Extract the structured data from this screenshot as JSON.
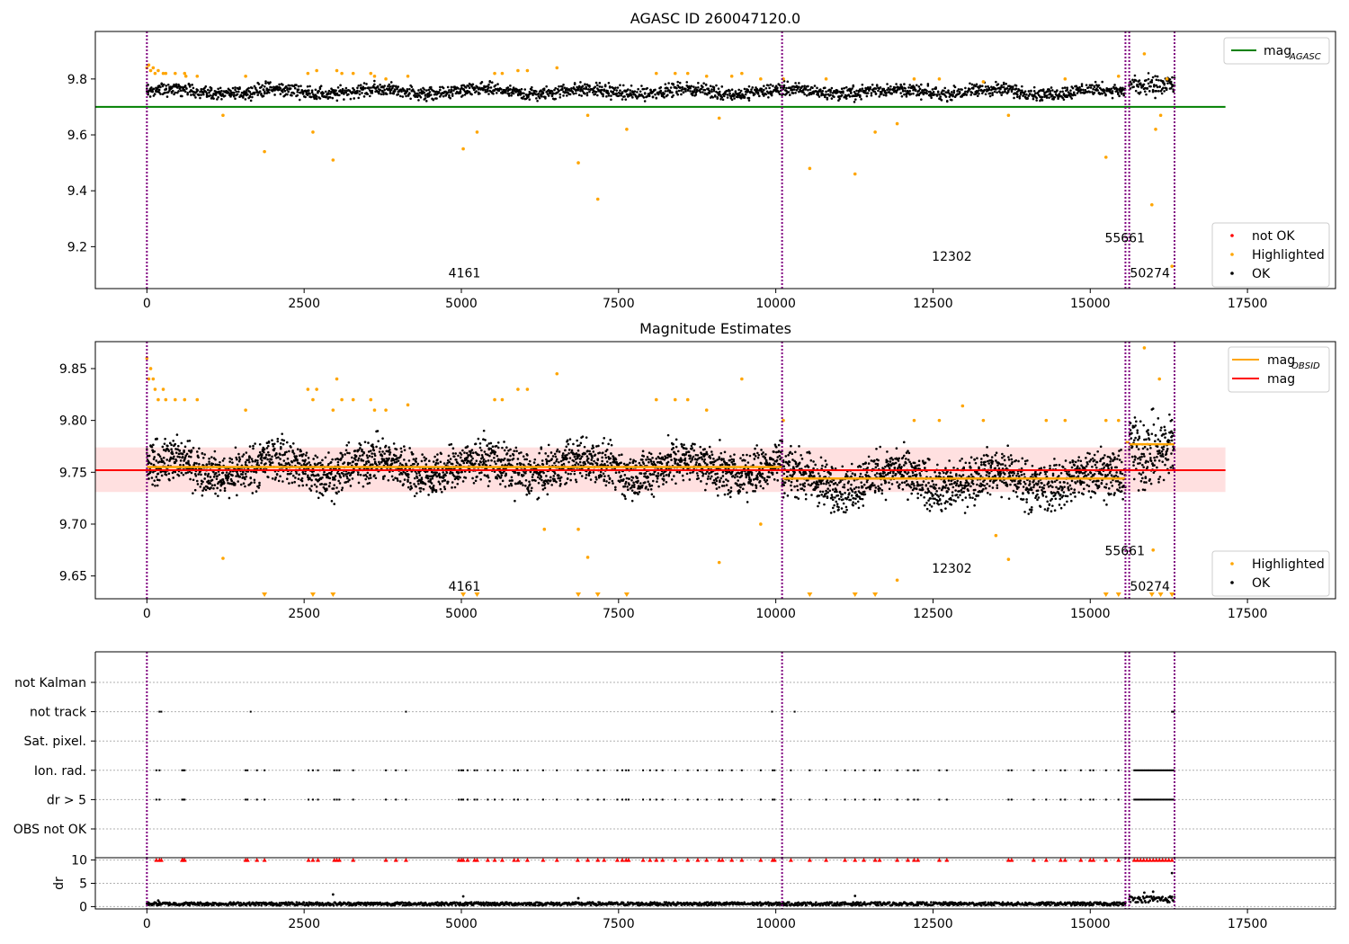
{
  "chart_data": [
    {
      "id": "top",
      "type": "scatter",
      "title": "AGASC ID 260047120.0",
      "xlabel": "",
      "ylabel": "",
      "xlim": [
        -820,
        18900
      ],
      "ylim": [
        9.05,
        9.97
      ],
      "xticks": [
        0,
        2500,
        5000,
        7500,
        10000,
        12500,
        15000,
        17500
      ],
      "xtick_labels": [
        "0",
        "2500",
        "5000",
        "7500",
        "10000",
        "12500",
        "15000",
        "17500"
      ],
      "yticks": [
        9.2,
        9.4,
        9.6,
        9.8
      ],
      "ytick_labels": [
        "9.2",
        "9.4",
        "9.6",
        "9.8"
      ],
      "vlines": [
        0,
        10100,
        15560,
        15620,
        16340
      ],
      "line_series": [
        {
          "name": "mag$_{AGASC}$",
          "legend_main": "mag",
          "legend_sub": "AGASC",
          "color": "#008000",
          "x": [
            -820,
            17150
          ],
          "y": [
            9.7,
            9.7
          ]
        }
      ],
      "ok_segments": [
        {
          "x0": 0,
          "x1": 15560,
          "center": 9.755,
          "spread": 0.025
        },
        {
          "x0": 15620,
          "x1": 16340,
          "center": 9.785,
          "spread": 0.04
        }
      ],
      "ok_color": "#000000",
      "highlighted_color": "#ffa500",
      "highlighted": {
        "x": [
          0,
          30,
          60,
          100,
          130,
          180,
          260,
          300,
          450,
          600,
          620,
          800,
          1210,
          1570,
          1870,
          2560,
          2640,
          2700,
          2960,
          3020,
          3100,
          3280,
          3560,
          3620,
          3800,
          4150,
          5030,
          5250,
          5530,
          5650,
          5900,
          6050,
          6520,
          6860,
          7010,
          7170,
          7630,
          8100,
          8400,
          8600,
          8900,
          9100,
          9300,
          9460,
          9760,
          10120,
          10540,
          10800,
          11260,
          11580,
          11930,
          12200,
          12600,
          13300,
          13700,
          14600,
          15250,
          15450,
          15860,
          15980,
          16040,
          16120,
          16220,
          16300
        ],
        "y": [
          9.84,
          9.85,
          9.83,
          9.84,
          9.82,
          9.83,
          9.82,
          9.82,
          9.82,
          9.82,
          9.81,
          9.81,
          9.67,
          9.81,
          9.54,
          9.82,
          9.61,
          9.83,
          9.51,
          9.83,
          9.82,
          9.82,
          9.82,
          9.81,
          9.8,
          9.81,
          9.55,
          9.61,
          9.82,
          9.82,
          9.83,
          9.83,
          9.84,
          9.5,
          9.67,
          9.37,
          9.62,
          9.82,
          9.82,
          9.82,
          9.81,
          9.66,
          9.81,
          9.82,
          9.8,
          9.8,
          9.48,
          9.8,
          9.46,
          9.61,
          9.64,
          9.8,
          9.8,
          9.79,
          9.67,
          9.8,
          9.52,
          9.81,
          9.89,
          9.35,
          9.62,
          9.67,
          9.8,
          9.13
        ]
      },
      "annotations": [
        {
          "text": "4161",
          "x": 5050,
          "y": 9.09
        },
        {
          "text": "12302",
          "x": 12800,
          "y": 9.15
        },
        {
          "text": "55661",
          "x": 15550,
          "y": 9.215
        },
        {
          "text": "50274",
          "x": 15950,
          "y": 9.09
        }
      ],
      "legends": [
        {
          "loc": "upper-right",
          "entries": [
            {
              "label": "mag",
              "sub": "AGASC",
              "kind": "line",
              "color": "#008000"
            }
          ]
        },
        {
          "loc": "lower-right",
          "entries": [
            {
              "label": "not OK",
              "kind": "dot",
              "color": "#ff0000"
            },
            {
              "label": "Highlighted",
              "kind": "dot",
              "color": "#ffa500"
            },
            {
              "label": "OK",
              "kind": "dot",
              "color": "#000000"
            }
          ]
        }
      ]
    },
    {
      "id": "middle",
      "type": "scatter",
      "title": "Magnitude Estimates",
      "xlabel": "",
      "ylabel": "",
      "xlim": [
        -820,
        18900
      ],
      "ylim": [
        9.628,
        9.876
      ],
      "xticks": [
        0,
        2500,
        5000,
        7500,
        10000,
        12500,
        15000,
        17500
      ],
      "xtick_labels": [
        "0",
        "2500",
        "5000",
        "7500",
        "10000",
        "12500",
        "15000",
        "17500"
      ],
      "yticks": [
        9.65,
        9.7,
        9.75,
        9.8,
        9.85
      ],
      "ytick_labels": [
        "9.65",
        "9.70",
        "9.75",
        "9.80",
        "9.85"
      ],
      "vlines": [
        0,
        10100,
        15560,
        15620,
        16340
      ],
      "band": {
        "x0": -820,
        "x1": 17150,
        "y0": 9.731,
        "y1": 9.774,
        "color": "rgba(255,0,0,0.12)"
      },
      "mag_line": {
        "x": [
          -820,
          17150
        ],
        "y": [
          9.752,
          9.752
        ],
        "color": "#ff0000"
      },
      "obsid_segments": [
        {
          "x0": 0,
          "x1": 10100,
          "y": 9.755
        },
        {
          "x0": 10100,
          "x1": 15560,
          "y": 9.744
        },
        {
          "x0": 15560,
          "x1": 15620,
          "y": 9.779
        },
        {
          "x0": 15620,
          "x1": 16340,
          "y": 9.777
        }
      ],
      "ok_segments": [
        {
          "x0": 0,
          "x1": 10100,
          "center": 9.755,
          "spread": 0.022
        },
        {
          "x0": 10100,
          "x1": 15560,
          "center": 9.743,
          "spread": 0.024
        },
        {
          "x0": 15620,
          "x1": 16340,
          "center": 9.78,
          "spread": 0.035
        }
      ],
      "ok_color": "#000000",
      "highlighted_color": "#ffa500",
      "highlighted": {
        "x": [
          0,
          30,
          60,
          100,
          130,
          180,
          260,
          300,
          450,
          600,
          800,
          1210,
          1570,
          2560,
          2640,
          2700,
          2960,
          3020,
          3100,
          3280,
          3560,
          3620,
          3800,
          4150,
          5530,
          5650,
          5900,
          6050,
          6320,
          6520,
          6860,
          7010,
          8100,
          8400,
          8600,
          8900,
          9100,
          9460,
          9760,
          10120,
          11930,
          12200,
          12600,
          12970,
          13300,
          13500,
          13700,
          14300,
          14600,
          15250,
          15450,
          15860,
          16000,
          16100
        ],
        "y": [
          9.86,
          9.84,
          9.85,
          9.84,
          9.83,
          9.82,
          9.83,
          9.82,
          9.82,
          9.82,
          9.82,
          9.667,
          9.81,
          9.83,
          9.82,
          9.83,
          9.81,
          9.84,
          9.82,
          9.82,
          9.82,
          9.81,
          9.81,
          9.815,
          9.82,
          9.82,
          9.83,
          9.83,
          9.695,
          9.845,
          9.695,
          9.668,
          9.82,
          9.82,
          9.82,
          9.81,
          9.663,
          9.84,
          9.7,
          9.8,
          9.646,
          9.8,
          9.8,
          9.814,
          9.8,
          9.689,
          9.666,
          9.8,
          9.8,
          9.8,
          9.8,
          9.87,
          9.675,
          9.84
        ]
      },
      "out_of_range_x": [
        1870,
        2640,
        2960,
        5030,
        5250,
        6860,
        7170,
        7630,
        10540,
        11260,
        11580,
        15250,
        15450,
        15980,
        16120,
        16300
      ],
      "annotations": [
        {
          "text": "4161",
          "x": 5050,
          "y": 9.636
        },
        {
          "text": "12302",
          "x": 12800,
          "y": 9.653
        },
        {
          "text": "55661",
          "x": 15550,
          "y": 9.67
        },
        {
          "text": "50274",
          "x": 15950,
          "y": 9.636
        }
      ],
      "legends": [
        {
          "loc": "upper-right",
          "entries": [
            {
              "label": "mag",
              "sub": "OBSID",
              "kind": "line",
              "color": "#ffa500"
            },
            {
              "label": "mag",
              "kind": "line",
              "color": "#ff0000"
            }
          ]
        },
        {
          "loc": "lower-right",
          "entries": [
            {
              "label": "Highlighted",
              "kind": "dot",
              "color": "#ffa500"
            },
            {
              "label": "OK",
              "kind": "dot",
              "color": "#000000"
            }
          ]
        }
      ]
    },
    {
      "id": "flags",
      "type": "scatter",
      "xlabel": "",
      "ylabel": "",
      "xlim": [
        -820,
        18900
      ],
      "categories": [
        "not Kalman",
        "not track",
        "Sat. pixel.",
        "Ion. rad.",
        "dr > 5",
        "OBS not OK"
      ],
      "vlines": [
        0,
        10100,
        15560,
        15620,
        16340
      ],
      "flag_points": {
        "not track": [
          200,
          230,
          1650,
          4120,
          9940,
          10300,
          16300
        ],
        "Ion. rad.": [
          150,
          200,
          560,
          580,
          600,
          1570,
          1600,
          1750,
          1870,
          2570,
          2640,
          2720,
          2980,
          3020,
          3060,
          3280,
          3800,
          3960,
          4120,
          4960,
          5000,
          5030,
          5100,
          5210,
          5250,
          5420,
          5530,
          5650,
          5840,
          5900,
          6050,
          6300,
          6520,
          6850,
          7010,
          7170,
          7270,
          7480,
          7560,
          7620,
          7660,
          7890,
          8000,
          8100,
          8200,
          8400,
          8600,
          8760,
          8900,
          9100,
          9150,
          9300,
          9460,
          9760,
          9950,
          9980,
          10240,
          10540,
          10800,
          11100,
          11260,
          11400,
          11580,
          11650,
          11930,
          12100,
          12200,
          12260,
          12600,
          12720,
          13700,
          13750,
          14100,
          14300,
          14530,
          14600,
          14850,
          15000,
          15050,
          15250,
          15450,
          15700,
          15750,
          15800,
          15850,
          15900,
          15950,
          16000,
          16050,
          16100,
          16150,
          16200,
          16250,
          16300
        ],
        "dr > 5": [
          150,
          200,
          560,
          580,
          600,
          1570,
          1600,
          1750,
          1870,
          2570,
          2640,
          2720,
          2980,
          3020,
          3060,
          3280,
          3800,
          3960,
          4120,
          4960,
          5000,
          5030,
          5100,
          5210,
          5250,
          5420,
          5530,
          5650,
          5840,
          5900,
          6050,
          6300,
          6520,
          6850,
          7010,
          7170,
          7270,
          7480,
          7560,
          7620,
          7660,
          7890,
          8000,
          8100,
          8200,
          8400,
          8600,
          8760,
          8900,
          9100,
          9150,
          9300,
          9460,
          9760,
          9950,
          9980,
          10240,
          10540,
          10800,
          11100,
          11260,
          11400,
          11580,
          11650,
          11930,
          12100,
          12200,
          12260,
          12600,
          12720,
          13700,
          13750,
          14100,
          14300,
          14530,
          14600,
          14850,
          15000,
          15050,
          15250,
          15450,
          15700,
          15750,
          15800,
          15850,
          15900,
          15950,
          16000,
          16050,
          16100,
          16150,
          16200,
          16250,
          16300
        ]
      }
    },
    {
      "id": "dr",
      "type": "scatter",
      "xlabel": "",
      "ylabel": "dr",
      "xlim": [
        -820,
        18900
      ],
      "ylim": [
        -0.5,
        10.5
      ],
      "xticks": [
        0,
        2500,
        5000,
        7500,
        10000,
        12500,
        15000,
        17500
      ],
      "xtick_labels": [
        "0",
        "2500",
        "5000",
        "7500",
        "10000",
        "12500",
        "15000",
        "17500"
      ],
      "yticks": [
        0,
        5,
        10
      ],
      "ytick_labels": [
        "0",
        "5",
        "10"
      ],
      "vlines": [
        0,
        10100,
        15560,
        15620,
        16340
      ],
      "clipped_color": "#ff0000",
      "clipped_x": [
        150,
        200,
        230,
        560,
        580,
        600,
        1570,
        1600,
        1750,
        1870,
        2570,
        2640,
        2720,
        2980,
        3020,
        3060,
        3280,
        3800,
        3960,
        4120,
        4960,
        5000,
        5030,
        5100,
        5210,
        5250,
        5420,
        5530,
        5650,
        5840,
        5900,
        6050,
        6300,
        6520,
        6850,
        7010,
        7170,
        7270,
        7480,
        7560,
        7620,
        7660,
        7890,
        8000,
        8100,
        8200,
        8400,
        8600,
        8760,
        8900,
        9100,
        9150,
        9300,
        9460,
        9760,
        9950,
        9980,
        10240,
        10540,
        10800,
        11100,
        11260,
        11400,
        11580,
        11650,
        11930,
        12100,
        12200,
        12260,
        12600,
        12720,
        13700,
        13750,
        14100,
        14300,
        14530,
        14600,
        14850,
        15000,
        15050,
        15250,
        15450,
        15700,
        15750,
        15800,
        15850,
        15900,
        15950,
        16000,
        16050,
        16100,
        16150,
        16200,
        16250,
        16300
      ],
      "baseline_segments": [
        {
          "x0": 0,
          "x1": 15560,
          "center": 0.6,
          "spread": 0.35
        },
        {
          "x0": 15620,
          "x1": 16340,
          "center": 1.6,
          "spread": 0.7
        }
      ],
      "high_points": {
        "x": [
          180,
          2960,
          5030,
          6860,
          11260,
          15860,
          16000,
          16300
        ],
        "y": [
          1.3,
          2.6,
          2.2,
          1.8,
          2.3,
          3.0,
          3.2,
          7.2
        ]
      }
    }
  ]
}
